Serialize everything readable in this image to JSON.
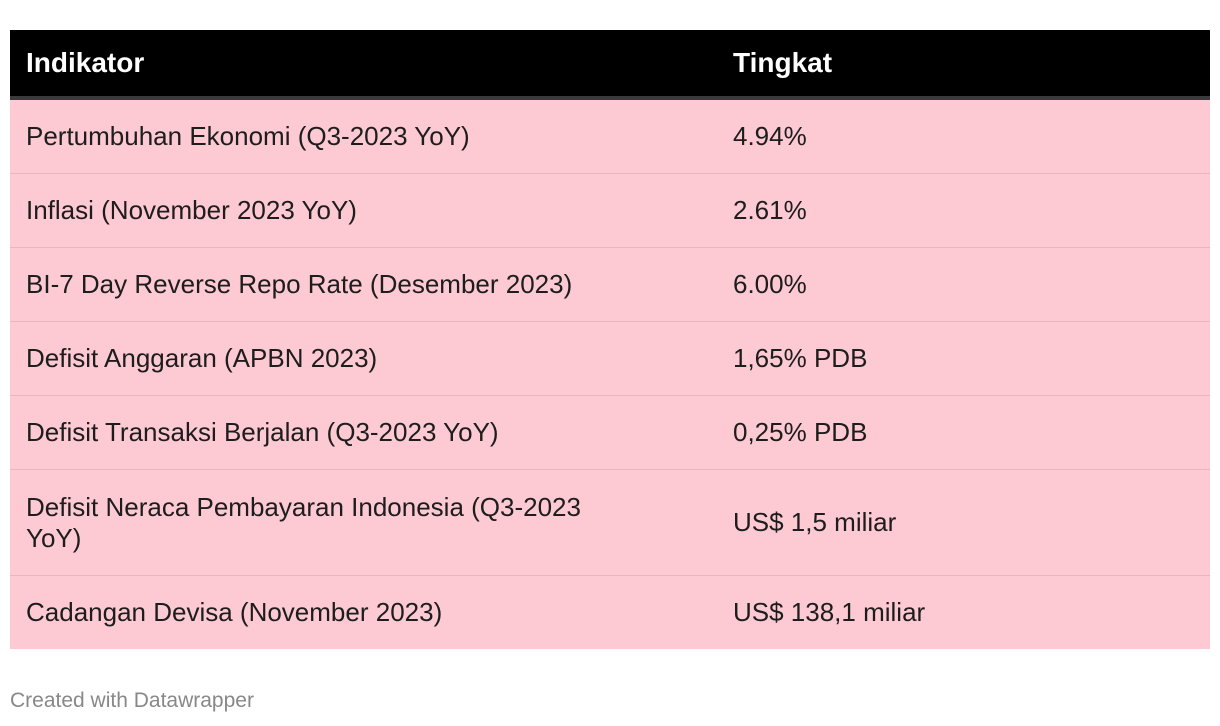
{
  "chart_data": {
    "type": "table",
    "columns": [
      "Indikator",
      "Tingkat"
    ],
    "rows": [
      [
        "Pertumbuhan Ekonomi (Q3-2023 YoY)",
        "4.94%"
      ],
      [
        "Inflasi (November 2023 YoY)",
        "2.61%"
      ],
      [
        "BI-7 Day Reverse Repo Rate (Desember 2023)",
        "6.00%"
      ],
      [
        "Defisit Anggaran (APBN 2023)",
        "1,65% PDB"
      ],
      [
        "Defisit Transaksi Berjalan (Q3-2023 YoY)",
        "0,25% PDB"
      ],
      [
        "Defisit Neraca Pembayaran Indonesia (Q3-2023 YoY)",
        "US$ 1,5 miliar"
      ],
      [
        "Cadangan Devisa (November 2023)",
        "US$ 138,1 miliar"
      ]
    ]
  },
  "footer": {
    "credit": "Created with Datawrapper"
  },
  "colors": {
    "header_bg": "#000000",
    "header_text": "#ffffff",
    "row_bg": "#fdc9d2"
  }
}
